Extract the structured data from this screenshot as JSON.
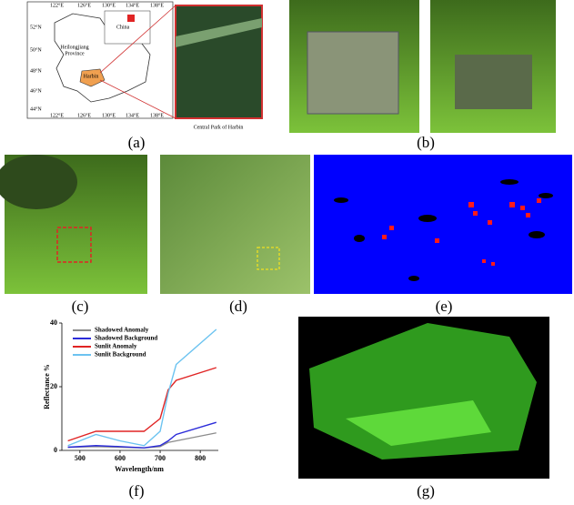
{
  "figure": {
    "captions": [
      "(a)",
      "(b)",
      "(c)",
      "(d)",
      "(e)",
      "(f)",
      "(g)"
    ],
    "map": {
      "top_ticks": [
        "122°E",
        "126°E",
        "130°E",
        "134°E",
        "138°E"
      ],
      "bottom_ticks": [
        "122°E",
        "126°E",
        "130°E",
        "134°E",
        "138°E"
      ],
      "left_ticks": [
        "52°N",
        "50°N",
        "48°N",
        "46°N",
        "44°N"
      ],
      "province": [
        "Heilongjiang",
        "Province"
      ],
      "city": "Harbin",
      "country": "China",
      "inset_caption": "Central Park of Harbin"
    }
  },
  "chart_data": {
    "type": "line",
    "xlabel": "Wavelength/nm",
    "ylabel": "Reflectance %",
    "x": [
      470,
      540,
      600,
      660,
      700,
      720,
      740,
      840
    ],
    "xlim": [
      455,
      845
    ],
    "xticks": [
      500,
      600,
      700,
      800
    ],
    "ylim": [
      0,
      40
    ],
    "yticks": [
      0,
      20,
      40
    ],
    "legend": "upper left",
    "series": [
      {
        "name": "Shadowed Anomaly",
        "color": "#8c8c8c",
        "values": [
          1,
          1.2,
          1,
          0.8,
          1.2,
          2.5,
          3,
          5.5
        ]
      },
      {
        "name": "Shadowed Background",
        "color": "#2b2bd9",
        "values": [
          1,
          1.5,
          1.2,
          0.8,
          1.5,
          3,
          5,
          8.8
        ]
      },
      {
        "name": "Sunlit Anomaly",
        "color": "#e02424",
        "values": [
          3,
          6,
          6,
          6,
          10,
          19,
          22,
          26
        ]
      },
      {
        "name": "Sunlit Background",
        "color": "#6cc3f0",
        "values": [
          1.5,
          5,
          3,
          1.5,
          6,
          18,
          27,
          38
        ]
      }
    ]
  }
}
